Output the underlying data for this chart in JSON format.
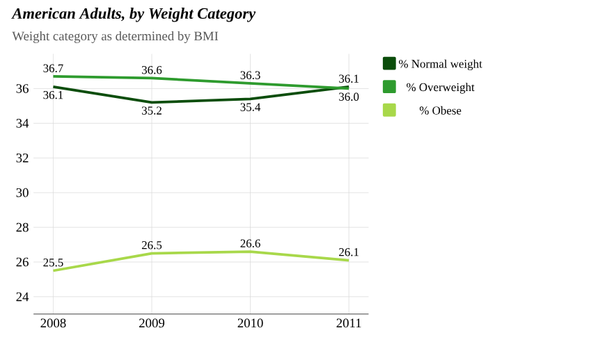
{
  "chart_data": {
    "type": "line",
    "title": "American Adults, by Weight Category",
    "subtitle": "Weight category as determined by BMI",
    "categories": [
      "2008",
      "2009",
      "2010",
      "2011"
    ],
    "series": [
      {
        "name": "% Normal weight",
        "color": "#0b4d0b",
        "values": [
          36.1,
          35.2,
          35.4,
          36.1
        ],
        "value_labels": [
          "36.1",
          "35.2",
          "35.4",
          "36.1"
        ]
      },
      {
        "name": "% Overweight",
        "color": "#2e9b2e",
        "values": [
          36.7,
          36.6,
          36.3,
          36.0
        ],
        "value_labels": [
          "36.7",
          "36.6",
          "36.3",
          "36.0"
        ]
      },
      {
        "name": "% Obese",
        "color": "#a8d84a",
        "values": [
          25.5,
          26.5,
          26.6,
          26.1
        ],
        "value_labels": [
          "25.5",
          "26.5",
          "26.6",
          "26.1"
        ]
      }
    ],
    "ylim": [
      23,
      38
    ],
    "yticks": [
      24,
      26,
      28,
      30,
      32,
      34,
      36
    ],
    "grid": true,
    "legend": "right"
  }
}
